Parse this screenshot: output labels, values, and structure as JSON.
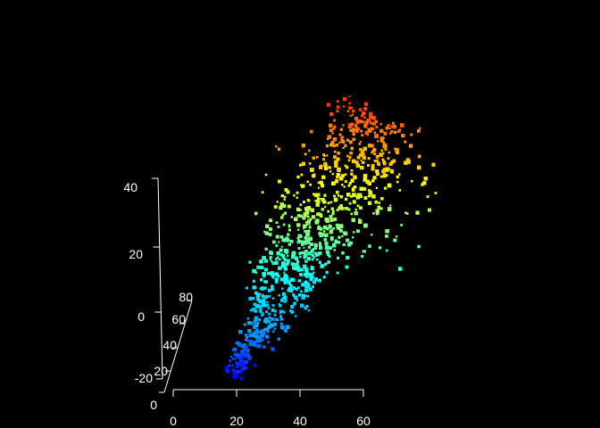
{
  "chart_data": {
    "type": "scatter",
    "subtype": "3d-point-cloud",
    "title": "",
    "xlabel": "",
    "ylabel": "",
    "zlabel": "",
    "background": "#000000",
    "axis_color": "#ffffff",
    "colormap": "jet",
    "color_by": "z",
    "colormap_stops": [
      "#0000ff",
      "#00a0ff",
      "#00ffff",
      "#80ff80",
      "#ffff00",
      "#ff8000",
      "#ff0000"
    ],
    "grid": false,
    "legend": "none",
    "xlim": [
      0,
      60
    ],
    "ylim": [
      0,
      80
    ],
    "zlim": [
      -20,
      40
    ],
    "x_ticks": [
      "0",
      "20",
      "40",
      "60"
    ],
    "y_ticks": [
      "0",
      "20",
      "40",
      "60",
      "80"
    ],
    "z_ticks": [
      "-20",
      "0",
      "20",
      "40"
    ],
    "points_summary": "dense tree-like point cloud rising diagonally; base near x≈20, y≈0, z≈-20; crown near x≈60, y≈80, z≈40"
  }
}
